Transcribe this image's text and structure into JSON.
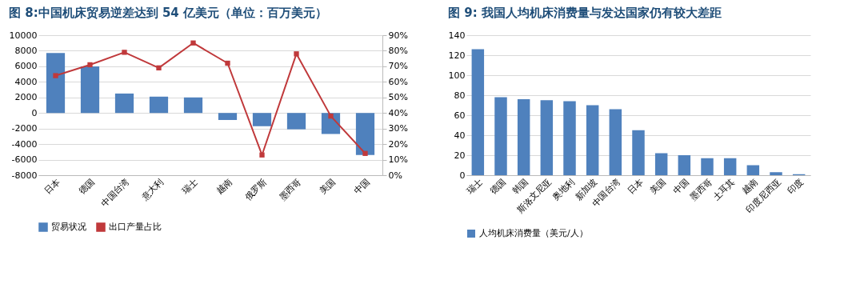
{
  "chart_data": [
    {
      "type": "bar",
      "title": "图 8:中国机床贸易逆差达到 54 亿美元（单位：百万美元）",
      "categories": [
        "日本",
        "德国",
        "中国台湾",
        "意大利",
        "瑞士",
        "越南",
        "俄罗斯",
        "墨西哥",
        "美国",
        "中国"
      ],
      "series": [
        {
          "name": "贸易状况",
          "color": "#4f81bd",
          "values": [
            7700,
            6000,
            2500,
            2100,
            2000,
            -900,
            -1700,
            -2100,
            -2700,
            -5400
          ]
        },
        {
          "name": "出口产量占比",
          "type": "line",
          "axis": "y2",
          "color": "#c0393b",
          "values": [
            64,
            71,
            79,
            69,
            85,
            72,
            13,
            78,
            38,
            14
          ]
        }
      ],
      "ylim": [
        -8000,
        10000
      ],
      "yticks": [
        -8000,
        -6000,
        -4000,
        -2000,
        0,
        2000,
        4000,
        6000,
        8000,
        10000
      ],
      "y2lim": [
        0,
        90
      ],
      "y2ticks": [
        {
          "value": 0,
          "label": "0%"
        },
        {
          "value": 10,
          "label": "10%"
        },
        {
          "value": 20,
          "label": "20%"
        },
        {
          "value": 30,
          "label": "30%"
        },
        {
          "value": 40,
          "label": "40%"
        },
        {
          "value": 50,
          "label": "50%"
        },
        {
          "value": 60,
          "label": "60%"
        },
        {
          "value": 70,
          "label": "70%"
        },
        {
          "value": 80,
          "label": "80%"
        },
        {
          "value": 90,
          "label": "90%"
        }
      ],
      "grid": "y",
      "legend": "bottom",
      "marker": "square"
    },
    {
      "type": "bar",
      "title": "图 9: 我国人均机床消费量与发达国家仍有较大差距",
      "categories": [
        "瑞士",
        "德国",
        "韩国",
        "斯洛文尼亚",
        "奥地利",
        "新加坡",
        "中国台湾",
        "日本",
        "美国",
        "中国",
        "墨西哥",
        "土耳其",
        "越南",
        "印度尼西亚",
        "印度"
      ],
      "series": [
        {
          "name": "人均机床消费量（美元/人）",
          "color": "#4f81bd",
          "values": [
            126,
            78,
            76,
            75,
            74,
            70,
            66,
            45,
            22,
            20,
            17,
            17,
            10,
            3,
            1
          ]
        }
      ],
      "ylim": [
        0,
        140
      ],
      "yticks": [
        0,
        20,
        40,
        60,
        80,
        100,
        120,
        140
      ],
      "grid": "y",
      "legend": "bottom"
    }
  ]
}
